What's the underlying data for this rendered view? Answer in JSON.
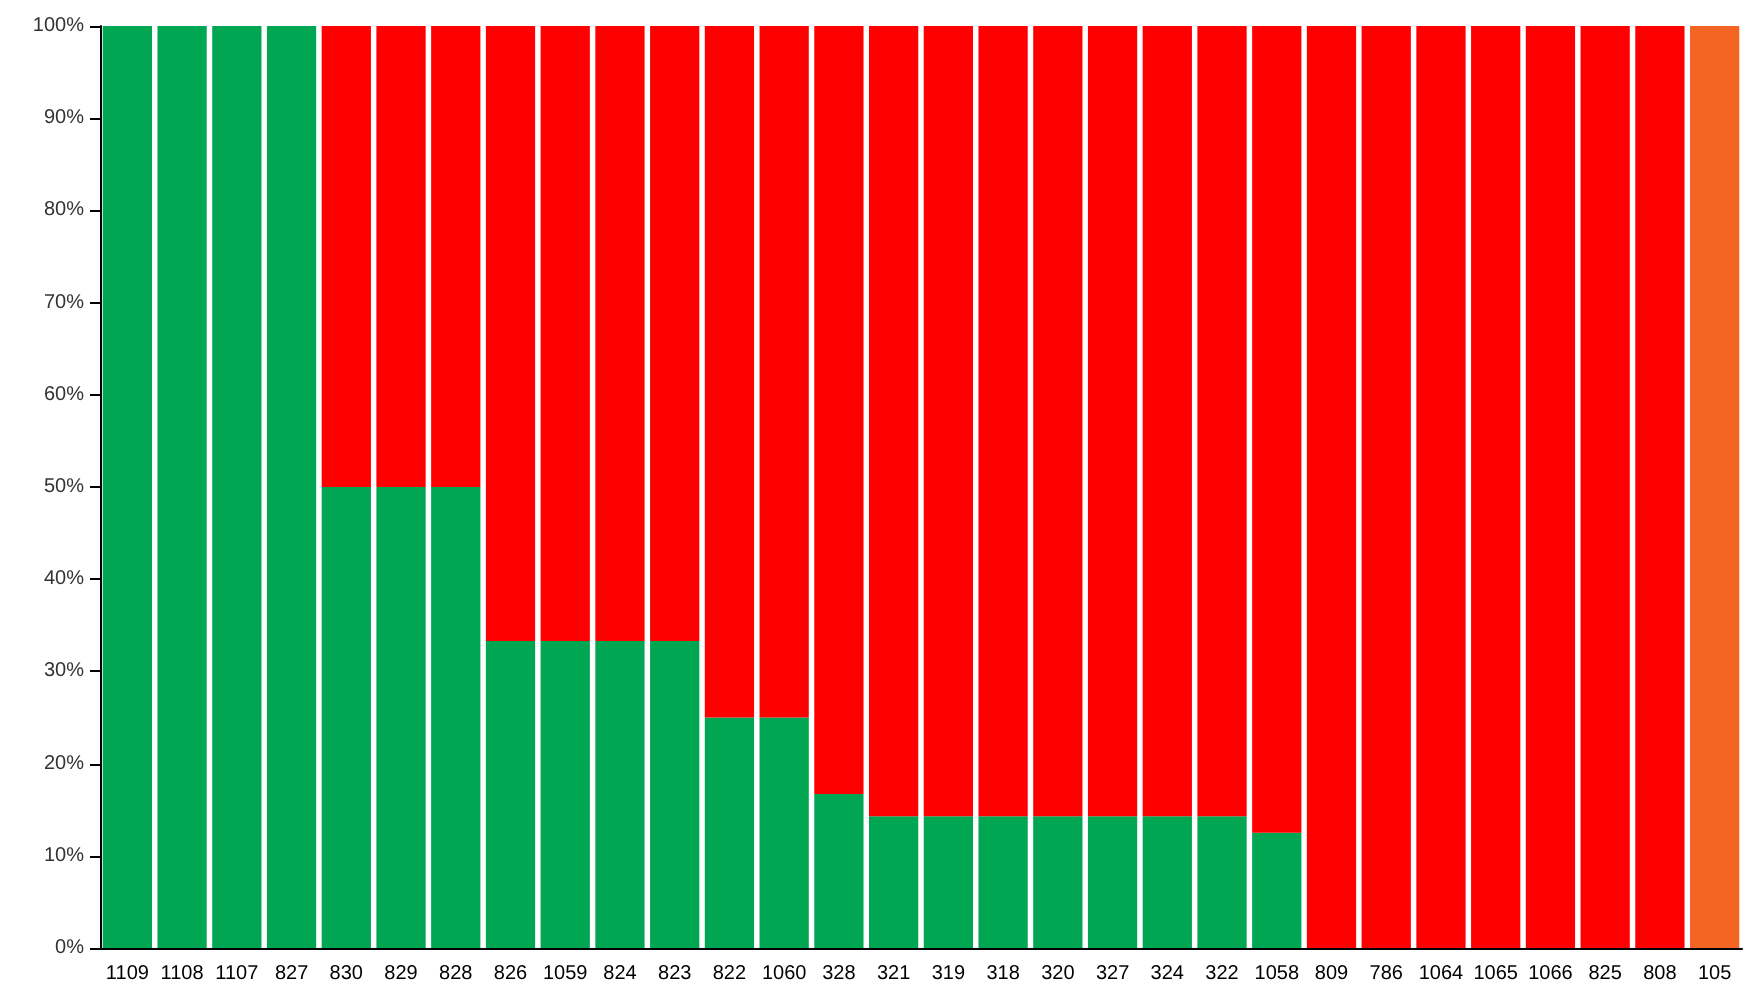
{
  "chart_data": {
    "type": "bar",
    "stacked": true,
    "grid": false,
    "categories": [
      "1109",
      "1108",
      "1107",
      "827",
      "830",
      "829",
      "828",
      "826",
      "1059",
      "824",
      "823",
      "822",
      "1060",
      "328",
      "321",
      "319",
      "318",
      "320",
      "327",
      "324",
      "322",
      "1058",
      "809",
      "786",
      "1064",
      "1065",
      "1066",
      "825",
      "808",
      "105"
    ],
    "ylim": [
      0,
      100
    ],
    "yticks": [
      {
        "value": 0,
        "label": "0%"
      },
      {
        "value": 10,
        "label": "10%"
      },
      {
        "value": 20,
        "label": "20%"
      },
      {
        "value": 30,
        "label": "30%"
      },
      {
        "value": 40,
        "label": "40%"
      },
      {
        "value": 50,
        "label": "50%"
      },
      {
        "value": 60,
        "label": "60%"
      },
      {
        "value": 70,
        "label": "70%"
      },
      {
        "value": 80,
        "label": "80%"
      },
      {
        "value": 90,
        "label": "90%"
      },
      {
        "value": 100,
        "label": "100%"
      }
    ],
    "series": [
      {
        "color": "#00a651",
        "values": [
          100,
          100,
          100,
          100,
          50,
          50,
          50,
          33.3,
          33.3,
          33.3,
          33.3,
          25,
          25,
          16.7,
          14.3,
          14.3,
          14.3,
          14.3,
          14.3,
          14.3,
          14.3,
          12.5,
          null,
          null,
          null,
          null,
          null,
          null,
          null,
          null
        ]
      },
      {
        "color": "#ff0000",
        "values": [
          null,
          null,
          null,
          null,
          50,
          50,
          50,
          66.7,
          66.7,
          66.7,
          66.7,
          75,
          75,
          83.3,
          85.7,
          85.7,
          85.7,
          85.7,
          85.7,
          85.7,
          85.7,
          87.5,
          100,
          100,
          100,
          100,
          100,
          100,
          100,
          null
        ]
      },
      {
        "color": "#f26522",
        "values": [
          null,
          null,
          null,
          null,
          null,
          null,
          null,
          null,
          null,
          null,
          null,
          null,
          null,
          null,
          null,
          null,
          null,
          null,
          null,
          null,
          null,
          null,
          null,
          null,
          null,
          null,
          null,
          null,
          null,
          100
        ]
      }
    ]
  }
}
